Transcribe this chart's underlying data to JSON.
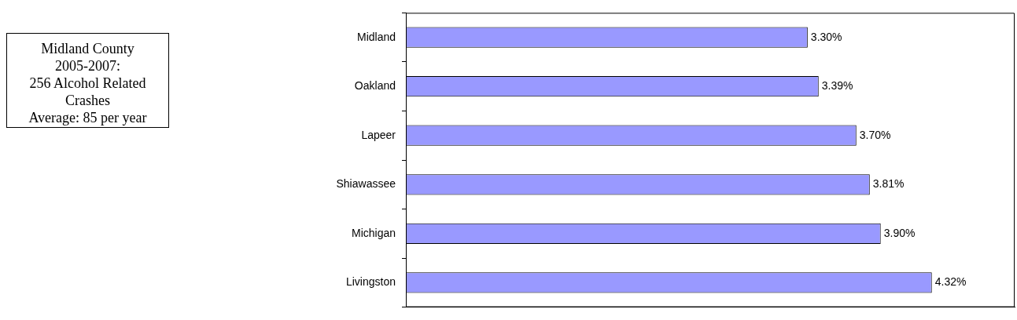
{
  "chart_data": {
    "type": "bar",
    "orientation": "horizontal",
    "categories": [
      "Midland",
      "Oakland",
      "Lapeer",
      "Shiawassee",
      "Michigan",
      "Livingston"
    ],
    "values": [
      3.3,
      3.39,
      3.7,
      3.81,
      3.9,
      4.32
    ],
    "value_labels": [
      "3.30%",
      "3.39%",
      "3.70%",
      "3.81%",
      "3.90%",
      "4.32%"
    ],
    "color": "#9999ff",
    "xlim": [
      0,
      5
    ],
    "tick_labels": "y",
    "grid": false,
    "legend": false,
    "annotations": [
      "Midland County",
      "2005-2007:",
      "256 Alcohol Related Crashes",
      "Average: 85 per year"
    ]
  }
}
